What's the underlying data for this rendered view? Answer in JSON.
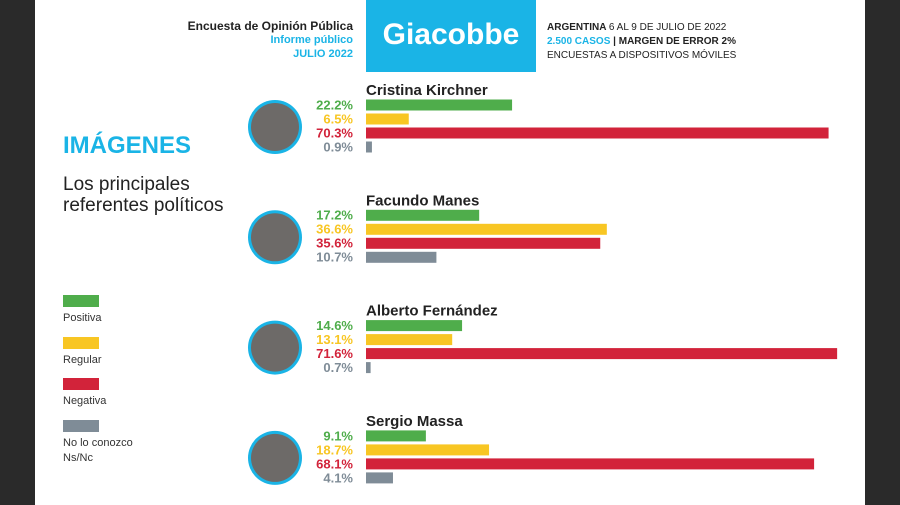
{
  "header": {
    "survey": "Encuesta de Opinión Pública",
    "report": "Informe público",
    "date": "JULIO 2022",
    "brand": "Giacobbe",
    "country": "ARGENTINA",
    "dates": "6 AL 9 DE JULIO DE 2022",
    "cases": "2.500 CASOS",
    "margin": "| MARGEN DE ERROR 2%",
    "method": "ENCUESTAS A DISPOSITIVOS MÓVILES"
  },
  "chart_data": {
    "type": "bar",
    "orientation": "horizontal",
    "title": "IMÁGENES",
    "subtitle": "Los principales referentes políticos",
    "categories": [
      "Cristina Kirchner",
      "Facundo Manes",
      "Alberto Fernández",
      "Sergio Massa"
    ],
    "series": [
      {
        "name": "Positiva",
        "color": "#4fad4b",
        "values": [
          22.2,
          17.2,
          14.6,
          9.1
        ],
        "value_labels": [
          "22.2%",
          "17.2%",
          "14.6%",
          "9.1%"
        ]
      },
      {
        "name": "Regular",
        "color": "#f8c623",
        "values": [
          6.5,
          36.6,
          13.1,
          18.7
        ],
        "value_labels": [
          "6.5%",
          "36.6%",
          "13.1%",
          "18.7%"
        ]
      },
      {
        "name": "Negativa",
        "color": "#d2233a",
        "values": [
          70.3,
          35.6,
          71.6,
          68.1
        ],
        "value_labels": [
          "70.3%",
          "35.6%",
          "71.6%",
          "68.1%"
        ]
      },
      {
        "name": "No lo conozco Ns/Nc",
        "color": "#7f8c97",
        "values": [
          0.9,
          10.7,
          0.7,
          4.1
        ],
        "value_labels": [
          "0.9%",
          "10.7%",
          "0.7%",
          "4.1%"
        ]
      }
    ]
  }
}
